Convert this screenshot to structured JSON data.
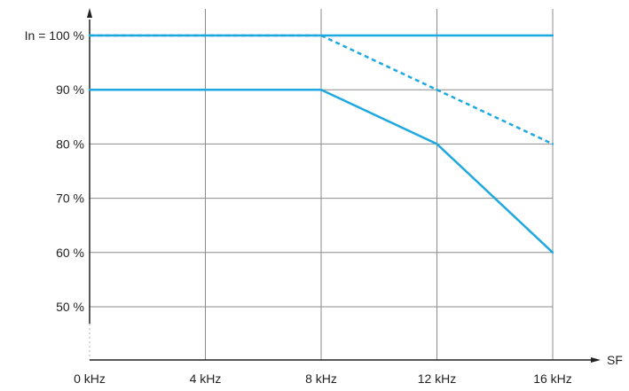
{
  "chart_data": {
    "type": "line",
    "xlabel": "SF",
    "ylabel": "",
    "x": [
      0,
      4,
      8,
      12,
      16
    ],
    "x_tick_labels": [
      "0 kHz",
      "4 kHz",
      "8 kHz",
      "12 kHz",
      "16 kHz"
    ],
    "y_ticks": [
      50,
      60,
      70,
      80,
      90,
      100
    ],
    "y_tick_labels": [
      "50 %",
      "60 %",
      "70 %",
      "80 %",
      "90 %",
      "In = 100 %"
    ],
    "xlim": [
      0,
      16
    ],
    "ylim": [
      45,
      105
    ],
    "grid": true,
    "series": [
      {
        "x": [
          0,
          16
        ],
        "values": [
          100,
          100
        ],
        "style": "solid",
        "color": "#1ea8e0"
      },
      {
        "x": [
          0,
          8,
          12,
          16
        ],
        "values": [
          100,
          100,
          90,
          80
        ],
        "style": "dashed",
        "color": "#1ea8e0"
      },
      {
        "x": [
          0,
          8,
          12,
          16
        ],
        "values": [
          90,
          90,
          80,
          60
        ],
        "style": "solid",
        "color": "#1ea8e0"
      }
    ]
  }
}
